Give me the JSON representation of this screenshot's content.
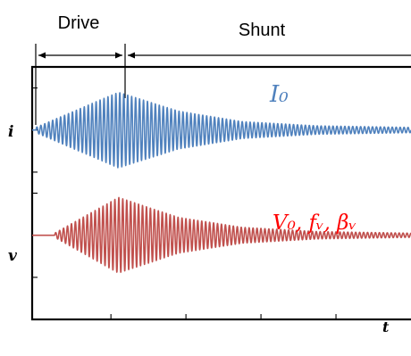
{
  "chart_data": {
    "type": "line",
    "title": "",
    "xlabel": "t",
    "ylabel": "",
    "phases": [
      {
        "name": "Drive",
        "t_start": 0.0,
        "t_end": 0.22
      },
      {
        "name": "Shunt",
        "t_start": 0.22,
        "t_end": 1.0
      }
    ],
    "xlim": [
      -0.01,
      1.0
    ],
    "ylim": [
      -2.6,
      2.2
    ],
    "series": [
      {
        "name": "i",
        "color": "#4f81bd",
        "baseline": 1.0,
        "onset": 0.0,
        "peak_time": 0.22,
        "peak_amplitude": 0.72,
        "start_amplitude": 0.05,
        "cycles": 95,
        "decay_amplitudes": [
          [
            0.22,
            0.72
          ],
          [
            0.38,
            0.36
          ],
          [
            0.55,
            0.16
          ],
          [
            0.75,
            0.08
          ],
          [
            1.0,
            0.05
          ]
        ]
      },
      {
        "name": "v",
        "color": "#c0504d",
        "baseline": -1.0,
        "onset": 0.05,
        "peak_time": 0.22,
        "peak_amplitude": 0.72,
        "start_amplitude": 0.04,
        "cycles": 95,
        "decay_amplitudes": [
          [
            0.22,
            0.72
          ],
          [
            0.38,
            0.34
          ],
          [
            0.55,
            0.15
          ],
          [
            0.75,
            0.07
          ],
          [
            1.0,
            0.04
          ]
        ]
      }
    ],
    "annotations": [
      {
        "text": "I₀",
        "color": "#4f81bd"
      },
      {
        "text": "V₀, fᵥ, βᵥ",
        "color": "#ff0000"
      }
    ],
    "grid": false
  }
}
